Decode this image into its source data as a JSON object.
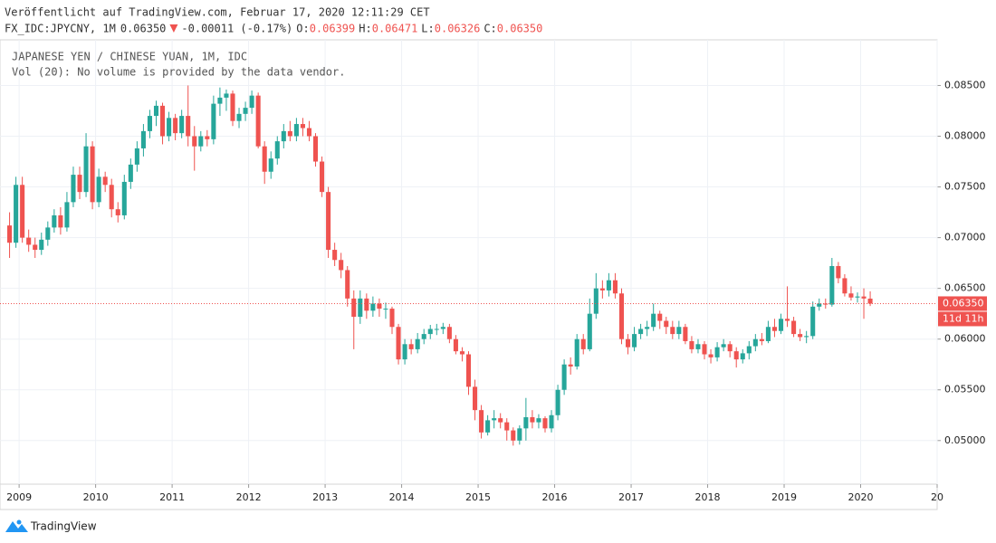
{
  "header": {
    "published": "Veröffentlicht auf TradingView.com, Februar 17, 2020 12:11:29 CET",
    "symbol": "FX_IDC:JPYCNY, 1M",
    "last": "0.06350",
    "change": "-0.00011 (-0.17%)",
    "ohlc": [
      {
        "key": "O:",
        "value": "0.06399"
      },
      {
        "key": "H:",
        "value": "0.06471"
      },
      {
        "key": "L:",
        "value": "0.06326"
      },
      {
        "key": "C:",
        "value": "0.06350"
      }
    ]
  },
  "footer": {
    "brand": "TradingView"
  },
  "chart_data": {
    "type": "candlestick",
    "legend": [
      "JAPANESE YEN / CHINESE YUAN, 1M, IDC",
      "Vol (20): No volume is provided by the data vendor."
    ],
    "up_color": "#26a69a",
    "down_color": "#ef5350",
    "grid": true,
    "price_line": {
      "value": 0.0635,
      "label": "0.06350",
      "color": "#ef5350"
    },
    "countdown": "11d 11h",
    "ylim": [
      0.0457,
      0.0895
    ],
    "yticks": [
      {
        "value": 0.05,
        "label": "0.05000"
      },
      {
        "value": 0.055,
        "label": "0.05500"
      },
      {
        "value": 0.06,
        "label": "0.06000"
      },
      {
        "value": 0.065,
        "label": "0.06500"
      },
      {
        "value": 0.07,
        "label": "0.07000"
      },
      {
        "value": 0.075,
        "label": "0.07500"
      },
      {
        "value": 0.08,
        "label": "0.08000"
      },
      {
        "value": 0.085,
        "label": "0.08500"
      }
    ],
    "xlim": [
      "2008-10",
      "2021-01"
    ],
    "xticks": [
      {
        "value": "2009-01",
        "label": "2009"
      },
      {
        "value": "2010-01",
        "label": "2010"
      },
      {
        "value": "2011-01",
        "label": "2011"
      },
      {
        "value": "2012-01",
        "label": "2012"
      },
      {
        "value": "2013-01",
        "label": "2013"
      },
      {
        "value": "2014-01",
        "label": "2014"
      },
      {
        "value": "2015-01",
        "label": "2015"
      },
      {
        "value": "2016-01",
        "label": "2016"
      },
      {
        "value": "2017-01",
        "label": "2017"
      },
      {
        "value": "2018-01",
        "label": "2018"
      },
      {
        "value": "2019-01",
        "label": "2019"
      },
      {
        "value": "2020-01",
        "label": "2020"
      },
      {
        "value": "2021-01",
        "label": "20"
      }
    ],
    "x": [
      "2008-11",
      "2008-12",
      "2009-01",
      "2009-02",
      "2009-03",
      "2009-04",
      "2009-05",
      "2009-06",
      "2009-07",
      "2009-08",
      "2009-09",
      "2009-10",
      "2009-11",
      "2009-12",
      "2010-01",
      "2010-02",
      "2010-03",
      "2010-04",
      "2010-05",
      "2010-06",
      "2010-07",
      "2010-08",
      "2010-09",
      "2010-10",
      "2010-11",
      "2010-12",
      "2011-01",
      "2011-02",
      "2011-03",
      "2011-04",
      "2011-05",
      "2011-06",
      "2011-07",
      "2011-08",
      "2011-09",
      "2011-10",
      "2011-11",
      "2011-12",
      "2012-01",
      "2012-02",
      "2012-03",
      "2012-04",
      "2012-05",
      "2012-06",
      "2012-07",
      "2012-08",
      "2012-09",
      "2012-10",
      "2012-11",
      "2012-12",
      "2013-01",
      "2013-02",
      "2013-03",
      "2013-04",
      "2013-05",
      "2013-06",
      "2013-07",
      "2013-08",
      "2013-09",
      "2013-10",
      "2013-11",
      "2013-12",
      "2014-01",
      "2014-02",
      "2014-03",
      "2014-04",
      "2014-05",
      "2014-06",
      "2014-07",
      "2014-08",
      "2014-09",
      "2014-10",
      "2014-11",
      "2014-12",
      "2015-01",
      "2015-02",
      "2015-03",
      "2015-04",
      "2015-05",
      "2015-06",
      "2015-07",
      "2015-08",
      "2015-09",
      "2015-10",
      "2015-11",
      "2015-12",
      "2016-01",
      "2016-02",
      "2016-03",
      "2016-04",
      "2016-05",
      "2016-06",
      "2016-07",
      "2016-08",
      "2016-09",
      "2016-10",
      "2016-11",
      "2016-12",
      "2017-01",
      "2017-02",
      "2017-03",
      "2017-04",
      "2017-05",
      "2017-06",
      "2017-07",
      "2017-08",
      "2017-09",
      "2017-10",
      "2017-11",
      "2017-12",
      "2018-01",
      "2018-02",
      "2018-03",
      "2018-04",
      "2018-05",
      "2018-06",
      "2018-07",
      "2018-08",
      "2018-09",
      "2018-10",
      "2018-11",
      "2018-12",
      "2019-01",
      "2019-02",
      "2019-03",
      "2019-04",
      "2019-05",
      "2019-06",
      "2019-07",
      "2019-08",
      "2019-09",
      "2019-10",
      "2019-11",
      "2019-12",
      "2020-01",
      "2020-02"
    ],
    "ohlc": [
      [
        0.0712,
        0.0725,
        0.068,
        0.0695
      ],
      [
        0.0695,
        0.076,
        0.069,
        0.0752
      ],
      [
        0.0752,
        0.076,
        0.0695,
        0.07
      ],
      [
        0.07,
        0.0708,
        0.0686,
        0.0693
      ],
      [
        0.0693,
        0.07,
        0.068,
        0.0688
      ],
      [
        0.0688,
        0.0705,
        0.0683,
        0.0698
      ],
      [
        0.0698,
        0.0716,
        0.0692,
        0.071
      ],
      [
        0.071,
        0.0728,
        0.0705,
        0.0722
      ],
      [
        0.0722,
        0.073,
        0.0703,
        0.071
      ],
      [
        0.071,
        0.0745,
        0.0706,
        0.0735
      ],
      [
        0.0735,
        0.077,
        0.073,
        0.0762
      ],
      [
        0.0762,
        0.077,
        0.0738,
        0.0745
      ],
      [
        0.0745,
        0.0803,
        0.074,
        0.079
      ],
      [
        0.079,
        0.0795,
        0.0728,
        0.0735
      ],
      [
        0.0735,
        0.0768,
        0.073,
        0.076
      ],
      [
        0.076,
        0.0765,
        0.0745,
        0.0752
      ],
      [
        0.0752,
        0.0758,
        0.072,
        0.0728
      ],
      [
        0.0728,
        0.0735,
        0.0715,
        0.0722
      ],
      [
        0.0722,
        0.0762,
        0.0718,
        0.0755
      ],
      [
        0.0755,
        0.0778,
        0.0748,
        0.0772
      ],
      [
        0.0772,
        0.0795,
        0.0765,
        0.0788
      ],
      [
        0.0788,
        0.0812,
        0.078,
        0.0805
      ],
      [
        0.0805,
        0.0826,
        0.0798,
        0.082
      ],
      [
        0.082,
        0.0835,
        0.081,
        0.083
      ],
      [
        0.083,
        0.0833,
        0.0792,
        0.08
      ],
      [
        0.08,
        0.0824,
        0.0795,
        0.0818
      ],
      [
        0.0818,
        0.0822,
        0.0796,
        0.0803
      ],
      [
        0.0803,
        0.0826,
        0.0798,
        0.082
      ],
      [
        0.082,
        0.085,
        0.079,
        0.08
      ],
      [
        0.08,
        0.081,
        0.0766,
        0.079
      ],
      [
        0.079,
        0.0805,
        0.0785,
        0.08
      ],
      [
        0.08,
        0.0806,
        0.079,
        0.0797
      ],
      [
        0.0797,
        0.084,
        0.0792,
        0.0832
      ],
      [
        0.0832,
        0.0848,
        0.082,
        0.0838
      ],
      [
        0.0838,
        0.0846,
        0.0825,
        0.0842
      ],
      [
        0.0842,
        0.0845,
        0.081,
        0.0815
      ],
      [
        0.0815,
        0.0828,
        0.0808,
        0.0822
      ],
      [
        0.0822,
        0.0834,
        0.0815,
        0.0828
      ],
      [
        0.0828,
        0.0845,
        0.0822,
        0.084
      ],
      [
        0.084,
        0.0843,
        0.0788,
        0.079
      ],
      [
        0.079,
        0.0795,
        0.0753,
        0.0765
      ],
      [
        0.0765,
        0.0785,
        0.0758,
        0.0778
      ],
      [
        0.0778,
        0.08,
        0.0772,
        0.0795
      ],
      [
        0.0795,
        0.0812,
        0.0788,
        0.0805
      ],
      [
        0.0805,
        0.0815,
        0.0795,
        0.08
      ],
      [
        0.08,
        0.0818,
        0.0795,
        0.0812
      ],
      [
        0.0812,
        0.0818,
        0.08,
        0.0808
      ],
      [
        0.0808,
        0.0815,
        0.0795,
        0.08
      ],
      [
        0.08,
        0.0803,
        0.077,
        0.0775
      ],
      [
        0.0775,
        0.078,
        0.074,
        0.0745
      ],
      [
        0.0745,
        0.075,
        0.068,
        0.0688
      ],
      [
        0.0688,
        0.0695,
        0.0672,
        0.0678
      ],
      [
        0.0678,
        0.0685,
        0.066,
        0.0668
      ],
      [
        0.0668,
        0.0672,
        0.0632,
        0.064
      ],
      [
        0.064,
        0.0648,
        0.059,
        0.0622
      ],
      [
        0.0622,
        0.0648,
        0.0615,
        0.064
      ],
      [
        0.064,
        0.0645,
        0.062,
        0.0628
      ],
      [
        0.0628,
        0.0642,
        0.0622,
        0.0635
      ],
      [
        0.0635,
        0.064,
        0.0622,
        0.063
      ],
      [
        0.063,
        0.0636,
        0.062,
        0.063
      ],
      [
        0.063,
        0.0632,
        0.0605,
        0.0612
      ],
      [
        0.0612,
        0.0615,
        0.0575,
        0.058
      ],
      [
        0.058,
        0.06,
        0.0575,
        0.0595
      ],
      [
        0.0595,
        0.06,
        0.0585,
        0.059
      ],
      [
        0.059,
        0.0606,
        0.0586,
        0.06
      ],
      [
        0.06,
        0.061,
        0.0595,
        0.0605
      ],
      [
        0.0605,
        0.0614,
        0.06,
        0.061
      ],
      [
        0.061,
        0.0615,
        0.0604,
        0.061
      ],
      [
        0.061,
        0.0616,
        0.0605,
        0.0612
      ],
      [
        0.0612,
        0.0615,
        0.0596,
        0.06
      ],
      [
        0.06,
        0.0604,
        0.0585,
        0.0588
      ],
      [
        0.0588,
        0.0592,
        0.0578,
        0.0585
      ],
      [
        0.0585,
        0.0588,
        0.0545,
        0.0553
      ],
      [
        0.0553,
        0.056,
        0.052,
        0.053
      ],
      [
        0.053,
        0.0535,
        0.0502,
        0.0508
      ],
      [
        0.0508,
        0.0525,
        0.0505,
        0.052
      ],
      [
        0.052,
        0.053,
        0.0512,
        0.0522
      ],
      [
        0.0522,
        0.0527,
        0.0512,
        0.0518
      ],
      [
        0.0518,
        0.0522,
        0.05,
        0.051
      ],
      [
        0.051,
        0.0513,
        0.0495,
        0.05
      ],
      [
        0.05,
        0.0515,
        0.0496,
        0.0512
      ],
      [
        0.0512,
        0.0542,
        0.05,
        0.0523
      ],
      [
        0.0523,
        0.053,
        0.0512,
        0.0518
      ],
      [
        0.0518,
        0.0526,
        0.0512,
        0.0522
      ],
      [
        0.0522,
        0.0524,
        0.0508,
        0.0512
      ],
      [
        0.0512,
        0.053,
        0.0508,
        0.0525
      ],
      [
        0.0525,
        0.0555,
        0.052,
        0.055
      ],
      [
        0.055,
        0.058,
        0.0545,
        0.0575
      ],
      [
        0.0575,
        0.0582,
        0.0565,
        0.0573
      ],
      [
        0.0573,
        0.0605,
        0.057,
        0.06
      ],
      [
        0.06,
        0.0605,
        0.0585,
        0.059
      ],
      [
        0.059,
        0.064,
        0.0588,
        0.0625
      ],
      [
        0.0625,
        0.0665,
        0.062,
        0.065
      ],
      [
        0.065,
        0.0658,
        0.064,
        0.0648
      ],
      [
        0.0648,
        0.0665,
        0.0642,
        0.0658
      ],
      [
        0.0658,
        0.0665,
        0.064,
        0.0645
      ],
      [
        0.0645,
        0.065,
        0.0595,
        0.06
      ],
      [
        0.06,
        0.0605,
        0.0585,
        0.0592
      ],
      [
        0.0592,
        0.0612,
        0.0588,
        0.0605
      ],
      [
        0.0605,
        0.0615,
        0.06,
        0.061
      ],
      [
        0.061,
        0.0618,
        0.0603,
        0.0612
      ],
      [
        0.0612,
        0.0635,
        0.0608,
        0.0625
      ],
      [
        0.0625,
        0.0628,
        0.061,
        0.0618
      ],
      [
        0.0618,
        0.0622,
        0.0605,
        0.0612
      ],
      [
        0.0612,
        0.0618,
        0.06,
        0.0605
      ],
      [
        0.0605,
        0.0618,
        0.06,
        0.0612
      ],
      [
        0.0612,
        0.0615,
        0.0595,
        0.0598
      ],
      [
        0.0598,
        0.0603,
        0.0586,
        0.059
      ],
      [
        0.059,
        0.06,
        0.0586,
        0.0595
      ],
      [
        0.0595,
        0.0598,
        0.058,
        0.0585
      ],
      [
        0.0585,
        0.059,
        0.0576,
        0.0582
      ],
      [
        0.0582,
        0.0597,
        0.0578,
        0.0592
      ],
      [
        0.0592,
        0.06,
        0.0588,
        0.0595
      ],
      [
        0.0595,
        0.0598,
        0.0582,
        0.0588
      ],
      [
        0.0588,
        0.0592,
        0.0572,
        0.058
      ],
      [
        0.058,
        0.059,
        0.0576,
        0.0586
      ],
      [
        0.0586,
        0.0598,
        0.058,
        0.0593
      ],
      [
        0.0593,
        0.0605,
        0.0588,
        0.06
      ],
      [
        0.06,
        0.0606,
        0.0594,
        0.0598
      ],
      [
        0.0598,
        0.0618,
        0.0596,
        0.0612
      ],
      [
        0.0612,
        0.062,
        0.0602,
        0.0608
      ],
      [
        0.0608,
        0.0625,
        0.0605,
        0.062
      ],
      [
        0.062,
        0.0652,
        0.0612,
        0.0618
      ],
      [
        0.0618,
        0.0622,
        0.0602,
        0.0605
      ],
      [
        0.0605,
        0.061,
        0.0598,
        0.0602
      ],
      [
        0.0602,
        0.0608,
        0.0596,
        0.0603
      ],
      [
        0.0603,
        0.0637,
        0.06,
        0.0632
      ],
      [
        0.0632,
        0.064,
        0.0628,
        0.0635
      ],
      [
        0.0635,
        0.064,
        0.063,
        0.0634
      ],
      [
        0.0634,
        0.068,
        0.0632,
        0.0672
      ],
      [
        0.0672,
        0.0676,
        0.0655,
        0.066
      ],
      [
        0.066,
        0.0664,
        0.0642,
        0.0645
      ],
      [
        0.0645,
        0.0652,
        0.0638,
        0.0641
      ],
      [
        0.0641,
        0.0646,
        0.0636,
        0.0642
      ],
      [
        0.0642,
        0.065,
        0.062,
        0.064
      ],
      [
        0.06399,
        0.06471,
        0.06326,
        0.0635
      ]
    ]
  }
}
